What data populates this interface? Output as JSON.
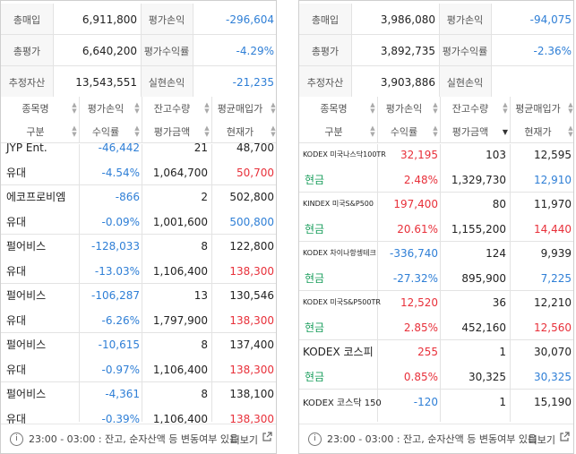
{
  "left": {
    "summary": [
      {
        "label1": "총매입",
        "value1": "6,911,800",
        "label2": "평가손익",
        "value2": "-296,604"
      },
      {
        "label1": "총평가",
        "value1": "6,640,200",
        "label2": "평가수익률",
        "value2": "-4.29%"
      },
      {
        "label1": "추정자산",
        "value1": "13,543,551",
        "label2": "실현손익",
        "value2": "-21,235"
      }
    ],
    "headers": {
      "row1": [
        "종목명",
        "평가손익",
        "잔고수량",
        "평균매입가"
      ],
      "row2": [
        "구분",
        "수익률",
        "평가금액",
        "현재가"
      ]
    },
    "rows": [
      {
        "name": "JYP Ent.",
        "pl": "-46,442",
        "qty": "21",
        "avg": "48,700",
        "type": "유대",
        "rate": "-4.54%",
        "eval": "1,064,700",
        "cur": "50,700"
      },
      {
        "name": "에코프로비엠",
        "pl": "-866",
        "qty": "2",
        "avg": "502,800",
        "type": "유대",
        "rate": "-0.09%",
        "eval": "1,001,600",
        "cur": "500,800"
      },
      {
        "name": "펄어비스",
        "pl": "-128,033",
        "qty": "8",
        "avg": "122,800",
        "type": "유대",
        "rate": "-13.03%",
        "eval": "1,106,400",
        "cur": "138,300"
      },
      {
        "name": "펄어비스",
        "pl": "-106,287",
        "qty": "13",
        "avg": "130,546",
        "type": "유대",
        "rate": "-6.26%",
        "eval": "1,797,900",
        "cur": "138,300"
      },
      {
        "name": "펄어비스",
        "pl": "-10,615",
        "qty": "8",
        "avg": "137,400",
        "type": "유대",
        "rate": "-0.97%",
        "eval": "1,106,400",
        "cur": "138,300"
      },
      {
        "name": "펄어비스",
        "pl": "-4,361",
        "qty": "8",
        "avg": "138,100",
        "type": "유대",
        "rate": "-0.39%",
        "eval": "1,106,400",
        "cur": "138,300"
      }
    ],
    "footer": {
      "text": "23:00 - 03:00 : 잔고, 순자산액 등 변동여부 있음",
      "more": "더보기"
    }
  },
  "right": {
    "summary": [
      {
        "label1": "총매입",
        "value1": "3,986,080",
        "label2": "평가손익",
        "value2": "-94,075"
      },
      {
        "label1": "총평가",
        "value1": "3,892,735",
        "label2": "평가수익률",
        "value2": "-2.36%"
      },
      {
        "label1": "추정자산",
        "value1": "3,903,886",
        "label2": "실현손익",
        "value2": ""
      }
    ],
    "headers": {
      "row1": [
        "종목명",
        "평가손익",
        "잔고수량",
        "평균매입가"
      ],
      "row2": [
        "구분",
        "수익률",
        "평가금액",
        "현재가"
      ]
    },
    "rows": [
      {
        "name": "KODEX 미국나스닥100TR",
        "pl": "32,195",
        "qty": "103",
        "avg": "12,595",
        "type": "현금",
        "rate": "2.48%",
        "eval": "1,329,730",
        "cur": "12,910"
      },
      {
        "name": "KINDEX 미국S&P500",
        "pl": "197,400",
        "qty": "80",
        "avg": "11,970",
        "type": "현금",
        "rate": "20.61%",
        "eval": "1,155,200",
        "cur": "14,440"
      },
      {
        "name": "KODEX 차이나항셍테크",
        "pl": "-336,740",
        "qty": "124",
        "avg": "9,939",
        "type": "현금",
        "rate": "-27.32%",
        "eval": "895,900",
        "cur": "7,225"
      },
      {
        "name": "KODEX 미국S&P500TR",
        "pl": "12,520",
        "qty": "36",
        "avg": "12,210",
        "type": "현금",
        "rate": "2.85%",
        "eval": "452,160",
        "cur": "12,560"
      },
      {
        "name": "KODEX 코스피",
        "pl": "255",
        "qty": "1",
        "avg": "30,070",
        "type": "현금",
        "rate": "0.85%",
        "eval": "30,325",
        "cur": "30,325"
      },
      {
        "name": "KODEX 코스닥 150",
        "pl": "-120",
        "qty": "1",
        "avg": "15,190",
        "type": "",
        "rate": "",
        "eval": "",
        "cur": ""
      }
    ],
    "footer": {
      "text": "23:00 - 03:00 : 잔고, 순자산액 등 변동여부 있음",
      "more": "더보기"
    }
  },
  "colors": {
    "negative": "#2f7fd6",
    "positive": "#e8303a",
    "cash": "#1a9e5c"
  }
}
